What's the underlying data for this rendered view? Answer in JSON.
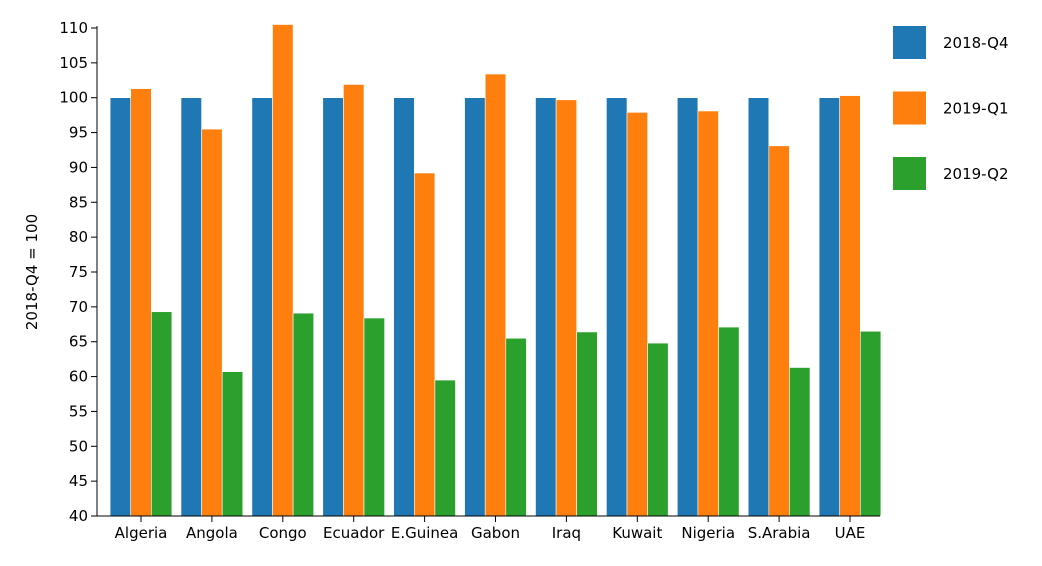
{
  "chart_data": {
    "type": "bar",
    "title": "",
    "xlabel": "",
    "ylabel": "2018-Q4 = 100",
    "ylim": [
      40,
      110
    ],
    "yticks": [
      40,
      45,
      50,
      55,
      60,
      65,
      70,
      75,
      80,
      85,
      90,
      95,
      100,
      105,
      110
    ],
    "categories": [
      "Algeria",
      "Angola",
      "Congo",
      "Ecuador",
      "E.Guinea",
      "Gabon",
      "Iraq",
      "Kuwait",
      "Nigeria",
      "S.Arabia",
      "UAE"
    ],
    "series": [
      {
        "name": "2018-Q4",
        "color": "#1f77b4",
        "values": [
          100,
          100,
          100,
          100,
          100,
          100,
          100,
          100,
          100,
          100,
          100
        ]
      },
      {
        "name": "2019-Q1",
        "color": "#ff7f0e",
        "values": [
          101.3,
          95.5,
          110.5,
          101.9,
          89.2,
          103.4,
          99.7,
          97.9,
          98.1,
          93.1,
          100.3
        ]
      },
      {
        "name": "2019-Q2",
        "color": "#2ca02c",
        "values": [
          69.3,
          60.7,
          69.1,
          68.4,
          59.5,
          65.5,
          66.4,
          64.8,
          67.1,
          61.3,
          66.5
        ]
      }
    ],
    "grid": false,
    "legend": "right"
  }
}
